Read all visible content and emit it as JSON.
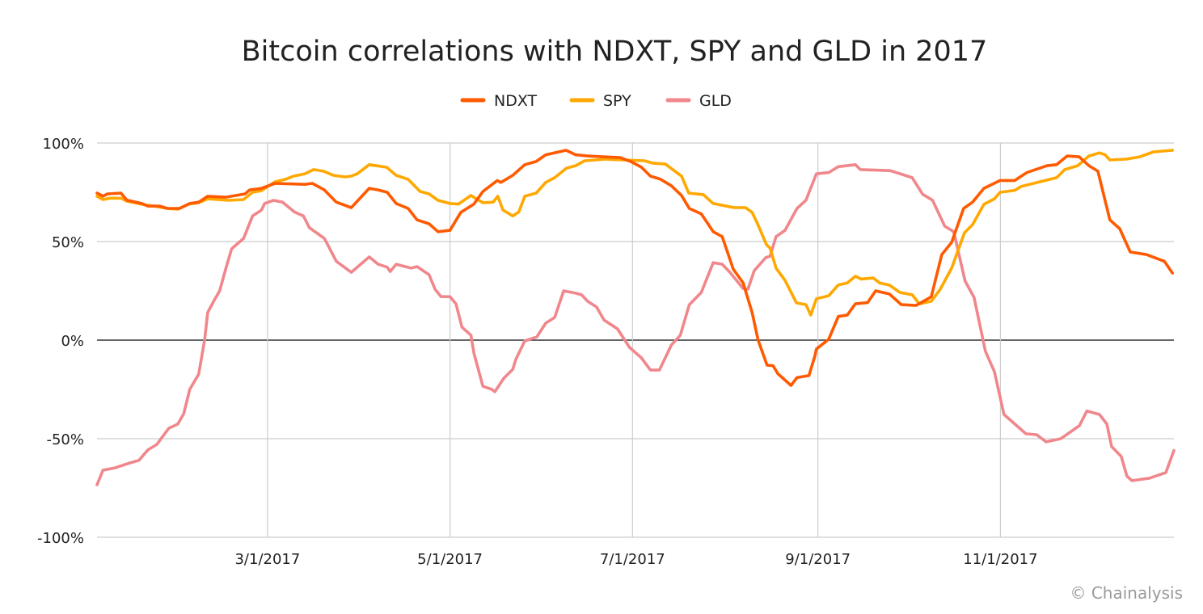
{
  "chart_data": {
    "type": "line",
    "title": "Bitcoin correlations with NDXT, SPY and GLD in 2017",
    "xlabel": "",
    "ylabel": "",
    "x_unit": "day of year 2017",
    "xlim": [
      3,
      363
    ],
    "ylim": [
      -100,
      100
    ],
    "grid": true,
    "legend_position": "top-center",
    "x_ticks": [
      {
        "day": 60,
        "label": "3/1/2017"
      },
      {
        "day": 121,
        "label": "5/1/2017"
      },
      {
        "day": 182,
        "label": "7/1/2017"
      },
      {
        "day": 244,
        "label": "9/1/2017"
      },
      {
        "day": 305,
        "label": "11/1/2017"
      }
    ],
    "y_ticks": [
      {
        "value": 100,
        "label": "100%"
      },
      {
        "value": 50,
        "label": "50%"
      },
      {
        "value": 0,
        "label": "0%"
      },
      {
        "value": -50,
        "label": "-50%"
      },
      {
        "value": -100,
        "label": "-100%"
      }
    ],
    "series": [
      {
        "name": "NDXT",
        "color": "#FF5A00",
        "points": [
          [
            3,
            74.6
          ],
          [
            5,
            73
          ],
          [
            6.5,
            74.2
          ],
          [
            11,
            74.6
          ],
          [
            13,
            71
          ],
          [
            18,
            69.3
          ],
          [
            20,
            68
          ],
          [
            24,
            68
          ],
          [
            26.5,
            66.8
          ],
          [
            30.6,
            66.8
          ],
          [
            34,
            69.3
          ],
          [
            37,
            70
          ],
          [
            40,
            73
          ],
          [
            46,
            72.5
          ],
          [
            52.5,
            74.2
          ],
          [
            54,
            76.2
          ],
          [
            58,
            77
          ],
          [
            62.5,
            79.5
          ],
          [
            72.5,
            79
          ],
          [
            75,
            79.5
          ],
          [
            79,
            76.2
          ],
          [
            83,
            70
          ],
          [
            88,
            67.2
          ],
          [
            94,
            77
          ],
          [
            97,
            76.2
          ],
          [
            100,
            75
          ],
          [
            103,
            69.3
          ],
          [
            107,
            66.8
          ],
          [
            110,
            61
          ],
          [
            114,
            59
          ],
          [
            117,
            55
          ],
          [
            121,
            55.7
          ],
          [
            124.6,
            64.8
          ],
          [
            129,
            69
          ],
          [
            132,
            75.4
          ],
          [
            136.8,
            81
          ],
          [
            138,
            80
          ],
          [
            142,
            83.6
          ],
          [
            146,
            89
          ],
          [
            149.8,
            90.6
          ],
          [
            153,
            94
          ],
          [
            159.8,
            96.3
          ],
          [
            163,
            94
          ],
          [
            167,
            93.4
          ],
          [
            177.9,
            92.6
          ],
          [
            181.4,
            90.6
          ],
          [
            185,
            87.7
          ],
          [
            188,
            83.2
          ],
          [
            191.4,
            81.6
          ],
          [
            195,
            78.3
          ],
          [
            198.4,
            73.4
          ],
          [
            201,
            66.8
          ],
          [
            205,
            64
          ],
          [
            209,
            55
          ],
          [
            212,
            52.5
          ],
          [
            215.7,
            36
          ],
          [
            219,
            29
          ],
          [
            222,
            14
          ],
          [
            224,
            0
          ],
          [
            227,
            -12.7
          ],
          [
            229,
            -13
          ],
          [
            230.6,
            -17
          ],
          [
            235,
            -23
          ],
          [
            237,
            -19
          ],
          [
            241,
            -18
          ],
          [
            243,
            -8
          ],
          [
            243.5,
            -4.5
          ],
          [
            247.6,
            0.4
          ],
          [
            250.8,
            12
          ],
          [
            253.8,
            12.7
          ],
          [
            256.5,
            18.4
          ],
          [
            260.6,
            19
          ],
          [
            263.3,
            25
          ],
          [
            267.9,
            23.4
          ],
          [
            271.9,
            18
          ],
          [
            276.8,
            17.6
          ],
          [
            281.9,
            22
          ],
          [
            285.4,
            43.4
          ],
          [
            288.7,
            49.6
          ],
          [
            292.7,
            66.8
          ],
          [
            295.7,
            70
          ],
          [
            299.5,
            77
          ],
          [
            304.9,
            81
          ],
          [
            309.8,
            81
          ],
          [
            313.8,
            85
          ],
          [
            320.6,
            88.5
          ],
          [
            323.8,
            89
          ],
          [
            327.3,
            93.4
          ],
          [
            331.3,
            93
          ],
          [
            334.6,
            88.5
          ],
          [
            337.6,
            85.7
          ],
          [
            341.6,
            61
          ],
          [
            344.9,
            56.5
          ],
          [
            348.4,
            44.7
          ],
          [
            353.8,
            43.4
          ],
          [
            359.8,
            40
          ],
          [
            362.5,
            34
          ]
        ]
      },
      {
        "name": "SPY",
        "color": "#FFA800",
        "points": [
          [
            3,
            73
          ],
          [
            5,
            71.3
          ],
          [
            7.6,
            72
          ],
          [
            11,
            72
          ],
          [
            13,
            70.5
          ],
          [
            18,
            68.9
          ],
          [
            22,
            68
          ],
          [
            26.5,
            66.8
          ],
          [
            30,
            66.4
          ],
          [
            33.5,
            68.9
          ],
          [
            37,
            69.7
          ],
          [
            40,
            71.7
          ],
          [
            47,
            70.9
          ],
          [
            52,
            71.3
          ],
          [
            55,
            75
          ],
          [
            58,
            75.8
          ],
          [
            62.5,
            80.3
          ],
          [
            66,
            81.6
          ],
          [
            68.7,
            83.2
          ],
          [
            72.5,
            84.4
          ],
          [
            75.4,
            86.5
          ],
          [
            78.7,
            85.7
          ],
          [
            82,
            83.6
          ],
          [
            86,
            82.8
          ],
          [
            88,
            83.2
          ],
          [
            90,
            84.4
          ],
          [
            94,
            89
          ],
          [
            99.8,
            87.7
          ],
          [
            103,
            83.6
          ],
          [
            107,
            81.6
          ],
          [
            111,
            75.4
          ],
          [
            114,
            74.2
          ],
          [
            117,
            70.9
          ],
          [
            121,
            69.3
          ],
          [
            123.8,
            69
          ],
          [
            128,
            73.4
          ],
          [
            132,
            69.7
          ],
          [
            135.4,
            70
          ],
          [
            137,
            73
          ],
          [
            138.7,
            66
          ],
          [
            142,
            63
          ],
          [
            144,
            65
          ],
          [
            146,
            73
          ],
          [
            149.8,
            74.6
          ],
          [
            153,
            80
          ],
          [
            156,
            82.4
          ],
          [
            160,
            87.3
          ],
          [
            163,
            88.5
          ],
          [
            166,
            91
          ],
          [
            173,
            91.8
          ],
          [
            178.7,
            91.4
          ],
          [
            186,
            91
          ],
          [
            188.7,
            89.8
          ],
          [
            193,
            89.3
          ],
          [
            198.4,
            83.2
          ],
          [
            200.8,
            74.6
          ],
          [
            205.7,
            73.8
          ],
          [
            209,
            69.3
          ],
          [
            216,
            67.2
          ],
          [
            219.8,
            67.2
          ],
          [
            222,
            64.8
          ],
          [
            223.8,
            59
          ],
          [
            226.8,
            48.4
          ],
          [
            228,
            46.7
          ],
          [
            230,
            36.5
          ],
          [
            233,
            30.3
          ],
          [
            236.8,
            18.9
          ],
          [
            240,
            18
          ],
          [
            241.6,
            12.7
          ],
          [
            243.5,
            21
          ],
          [
            247.6,
            22.5
          ],
          [
            250.8,
            28
          ],
          [
            253.8,
            29
          ],
          [
            256.5,
            32.4
          ],
          [
            258.4,
            31
          ],
          [
            262.5,
            31.5
          ],
          [
            264.6,
            29
          ],
          [
            267.9,
            27.9
          ],
          [
            271.4,
            24.2
          ],
          [
            275.5,
            23
          ],
          [
            277.9,
            18.4
          ],
          [
            281.9,
            19.7
          ],
          [
            284.9,
            25.8
          ],
          [
            288.7,
            36.5
          ],
          [
            293,
            54.5
          ],
          [
            295.7,
            58.6
          ],
          [
            299.5,
            68.9
          ],
          [
            303,
            71.7
          ],
          [
            304.9,
            75
          ],
          [
            309.8,
            76
          ],
          [
            312,
            78
          ],
          [
            317.4,
            80
          ],
          [
            323.8,
            82.4
          ],
          [
            326.5,
            86.5
          ],
          [
            330.8,
            88.5
          ],
          [
            334.6,
            93.4
          ],
          [
            338.1,
            95
          ],
          [
            340,
            94
          ],
          [
            341.6,
            91.4
          ],
          [
            347,
            91.8
          ],
          [
            351.6,
            93
          ],
          [
            356.2,
            95.5
          ],
          [
            362.5,
            96.3
          ]
        ]
      },
      {
        "name": "GLD",
        "color": "#F0878C",
        "points": [
          [
            3,
            -73.4
          ],
          [
            5,
            -66
          ],
          [
            9,
            -64.8
          ],
          [
            14,
            -62.3
          ],
          [
            17,
            -61
          ],
          [
            20,
            -55.7
          ],
          [
            23,
            -52.9
          ],
          [
            27,
            -44.7
          ],
          [
            30,
            -42.6
          ],
          [
            32,
            -37.3
          ],
          [
            34,
            -25
          ],
          [
            37,
            -17.2
          ],
          [
            39,
            0.4
          ],
          [
            40,
            14
          ],
          [
            42,
            19.7
          ],
          [
            44,
            25
          ],
          [
            46,
            36
          ],
          [
            48,
            46.3
          ],
          [
            52,
            51.6
          ],
          [
            55,
            63
          ],
          [
            58,
            66
          ],
          [
            59,
            69.3
          ],
          [
            62,
            70.9
          ],
          [
            65,
            70
          ],
          [
            69,
            65
          ],
          [
            72,
            63
          ],
          [
            74,
            57
          ],
          [
            79,
            51.6
          ],
          [
            83,
            40
          ],
          [
            88,
            34.4
          ],
          [
            94,
            42.2
          ],
          [
            97,
            38.5
          ],
          [
            100,
            37
          ],
          [
            101,
            34.8
          ],
          [
            103,
            38.5
          ],
          [
            108,
            36.5
          ],
          [
            110,
            37.3
          ],
          [
            114,
            33.2
          ],
          [
            116,
            25.8
          ],
          [
            118,
            22.1
          ],
          [
            121,
            22
          ],
          [
            123,
            18.4
          ],
          [
            125,
            6.6
          ],
          [
            128,
            2.5
          ],
          [
            129,
            -6.6
          ],
          [
            132,
            -23.4
          ],
          [
            135,
            -25
          ],
          [
            136,
            -26.2
          ],
          [
            139,
            -19.3
          ],
          [
            142,
            -14.8
          ],
          [
            143,
            -9.8
          ],
          [
            146,
            -0.4
          ],
          [
            150,
            1.6
          ],
          [
            153,
            8.6
          ],
          [
            156,
            11.5
          ],
          [
            159,
            25
          ],
          [
            163,
            23.8
          ],
          [
            165,
            23
          ],
          [
            167,
            19.7
          ],
          [
            170,
            16.8
          ],
          [
            172.5,
            10.2
          ],
          [
            177,
            5.7
          ],
          [
            181,
            -3.7
          ],
          [
            185,
            -9
          ],
          [
            188,
            -15.2
          ],
          [
            191,
            -15.2
          ],
          [
            195,
            -2.5
          ],
          [
            198,
            2.5
          ],
          [
            201,
            18
          ],
          [
            205,
            24.2
          ],
          [
            209,
            39.3
          ],
          [
            212,
            38.5
          ],
          [
            214.6,
            34.4
          ],
          [
            219,
            26.2
          ],
          [
            220.6,
            25.8
          ],
          [
            222.7,
            35.2
          ],
          [
            226.5,
            41.8
          ],
          [
            228,
            42.6
          ],
          [
            230,
            52.5
          ],
          [
            233,
            55.7
          ],
          [
            237,
            66.8
          ],
          [
            240,
            71
          ],
          [
            243.5,
            84.4
          ],
          [
            247.6,
            85
          ],
          [
            250.8,
            88
          ],
          [
            256.5,
            89
          ],
          [
            258.2,
            86.5
          ],
          [
            268.2,
            86
          ],
          [
            275.5,
            82.4
          ],
          [
            279,
            74
          ],
          [
            282.3,
            71
          ],
          [
            286.4,
            57.8
          ],
          [
            289.4,
            55
          ],
          [
            293.2,
            30
          ],
          [
            296.2,
            21.7
          ],
          [
            300,
            -5.7
          ],
          [
            303,
            -16
          ],
          [
            306.2,
            -37.7
          ],
          [
            313.5,
            -47.5
          ],
          [
            317.1,
            -48
          ],
          [
            320.3,
            -51.6
          ],
          [
            325.2,
            -50
          ],
          [
            331.4,
            -43.4
          ],
          [
            333.9,
            -36
          ],
          [
            338.1,
            -37.7
          ],
          [
            340.6,
            -42.6
          ],
          [
            342.2,
            -54
          ],
          [
            345.4,
            -59
          ],
          [
            347.3,
            -69
          ],
          [
            349,
            -71.3
          ],
          [
            354.9,
            -70
          ],
          [
            360.3,
            -67.2
          ],
          [
            363,
            -56
          ]
        ]
      }
    ]
  },
  "footer": {
    "copyright": "© Chainalysis"
  }
}
